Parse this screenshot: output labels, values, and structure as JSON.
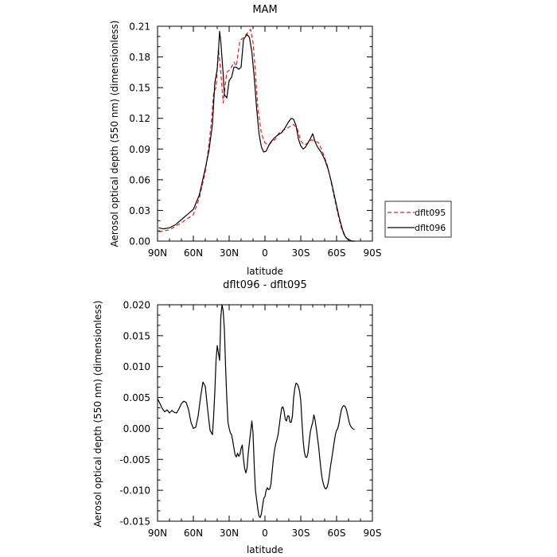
{
  "chart_data": [
    {
      "type": "line",
      "title": "MAM",
      "xlabel": "latitude",
      "ylabel": "Aerosol optical depth (550 nm) (dimensionless)",
      "xlim": [
        90,
        -90
      ],
      "ylim": [
        0,
        0.21
      ],
      "x_ticks": [
        90,
        60,
        30,
        0,
        -30,
        -60,
        -90
      ],
      "x_tick_labels": [
        "90N",
        "60N",
        "30N",
        "0",
        "30S",
        "60S",
        "90S"
      ],
      "y_ticks": [
        0,
        0.03,
        0.06,
        0.09,
        0.12,
        0.15,
        0.18,
        0.21
      ],
      "y_tick_labels": [
        "0.00",
        "0.03",
        "0.06",
        "0.09",
        "0.12",
        "0.15",
        "0.18",
        "0.21"
      ],
      "legend_position": "right",
      "series": [
        {
          "name": "dflt095",
          "color": "#e8191c",
          "dash": "dashed",
          "x": [
            89,
            80,
            70,
            60,
            55,
            50,
            48,
            45,
            43,
            41,
            39,
            37,
            35,
            32,
            29,
            26,
            24,
            21,
            18,
            15,
            12,
            10,
            8,
            6,
            3,
            0,
            -3,
            -6,
            -9,
            -12,
            -15,
            -18,
            -21,
            -24,
            -27,
            -30,
            -33,
            -36,
            -39,
            -42,
            -45,
            -48,
            -52,
            -55,
            -58,
            -61,
            -64,
            -67,
            -70,
            -72,
            -75
          ],
          "values": [
            0.009,
            0.011,
            0.018,
            0.026,
            0.042,
            0.068,
            0.085,
            0.115,
            0.145,
            0.15,
            0.188,
            0.165,
            0.135,
            0.165,
            0.168,
            0.175,
            0.171,
            0.196,
            0.199,
            0.203,
            0.207,
            0.194,
            0.165,
            0.13,
            0.105,
            0.096,
            0.094,
            0.097,
            0.1,
            0.106,
            0.108,
            0.11,
            0.112,
            0.114,
            0.11,
            0.098,
            0.094,
            0.096,
            0.099,
            0.098,
            0.096,
            0.088,
            0.075,
            0.06,
            0.043,
            0.027,
            0.013,
            0.004,
            0.001,
            0.0,
            0.0
          ]
        },
        {
          "name": "dflt096",
          "color": "#000000",
          "dash": "solid",
          "x": [
            89,
            85,
            80,
            75,
            70,
            65,
            60,
            55,
            50,
            47,
            44,
            42,
            40,
            39,
            38,
            37,
            35,
            34,
            32,
            30,
            28,
            26,
            24,
            22,
            20,
            18,
            15,
            13,
            11,
            9,
            7,
            5,
            3,
            1,
            -1,
            -3,
            -5,
            -8,
            -11,
            -14,
            -17,
            -20,
            -22,
            -24,
            -26,
            -28,
            -30,
            -32,
            -34,
            -36,
            -38,
            -40,
            -42,
            -44,
            -47,
            -50,
            -53,
            -56,
            -59,
            -62,
            -65,
            -67,
            -69,
            -71,
            -73,
            -75
          ],
          "values": [
            0.013,
            0.012,
            0.013,
            0.016,
            0.021,
            0.026,
            0.031,
            0.045,
            0.071,
            0.088,
            0.114,
            0.155,
            0.168,
            0.185,
            0.205,
            0.195,
            0.163,
            0.143,
            0.14,
            0.157,
            0.16,
            0.17,
            0.17,
            0.168,
            0.17,
            0.197,
            0.202,
            0.199,
            0.185,
            0.16,
            0.13,
            0.105,
            0.092,
            0.087,
            0.088,
            0.093,
            0.097,
            0.101,
            0.104,
            0.106,
            0.111,
            0.117,
            0.12,
            0.119,
            0.113,
            0.1,
            0.093,
            0.09,
            0.092,
            0.096,
            0.1,
            0.105,
            0.097,
            0.092,
            0.087,
            0.08,
            0.07,
            0.056,
            0.04,
            0.024,
            0.011,
            0.005,
            0.002,
            0.001,
            0.0,
            0.0
          ]
        }
      ]
    },
    {
      "type": "line",
      "title": "dflt096 - dflt095",
      "xlabel": "latitude",
      "ylabel": "Aerosol optical depth (550 nm) (dimensionless)",
      "xlim": [
        90,
        -90
      ],
      "ylim": [
        -0.015,
        0.02
      ],
      "x_ticks": [
        90,
        60,
        30,
        0,
        -30,
        -60,
        -90
      ],
      "x_tick_labels": [
        "90N",
        "60N",
        "30N",
        "0",
        "30S",
        "60S",
        "90S"
      ],
      "y_ticks": [
        -0.015,
        -0.01,
        -0.005,
        0,
        0.005,
        0.01,
        0.015,
        0.02
      ],
      "y_tick_labels": [
        "-0.015",
        "-0.010",
        "-0.005",
        "0.000",
        "0.005",
        "0.010",
        "0.015",
        "0.020"
      ],
      "series": [
        {
          "color": "#000000",
          "dash": "solid",
          "x": [
            90,
            88,
            86,
            84,
            82,
            80,
            78,
            76,
            74,
            72,
            70,
            68,
            66,
            64,
            62,
            60,
            58,
            56,
            54,
            52,
            50,
            48,
            46,
            44,
            43,
            42,
            41,
            40,
            39,
            38,
            37,
            36,
            35,
            34,
            33,
            32,
            31,
            30,
            29,
            28,
            27,
            26,
            25,
            24,
            23,
            22,
            21,
            20,
            19,
            18,
            17,
            16,
            15,
            14,
            13,
            12,
            11,
            10,
            9,
            8,
            7,
            6,
            5,
            4,
            3,
            2,
            1,
            0,
            -1,
            -2,
            -3,
            -4,
            -5,
            -6,
            -7,
            -8,
            -9,
            -10,
            -11,
            -12,
            -13,
            -14,
            -15,
            -16,
            -17,
            -18,
            -19,
            -20,
            -21,
            -22,
            -23,
            -24,
            -25,
            -26,
            -27,
            -28,
            -29,
            -30,
            -31,
            -32,
            -33,
            -34,
            -35,
            -36,
            -37,
            -38,
            -39,
            -40,
            -41,
            -42,
            -43,
            -44,
            -45,
            -46,
            -47,
            -48,
            -49,
            -50,
            -51,
            -52,
            -53,
            -54,
            -55,
            -56,
            -57,
            -58,
            -59,
            -60,
            -61,
            -62,
            -63,
            -64,
            -65,
            -66,
            -67,
            -68,
            -69,
            -70,
            -71,
            -72,
            -73,
            -74,
            -75
          ],
          "values": [
            0.0048,
            0.004,
            0.0032,
            0.0027,
            0.003,
            0.0025,
            0.0029,
            0.0026,
            0.0025,
            0.0032,
            0.004,
            0.0044,
            0.0042,
            0.003,
            0.001,
            0.0,
            0.0002,
            0.002,
            0.005,
            0.0075,
            0.0068,
            0.003,
            -0.0003,
            -0.001,
            0.002,
            0.006,
            0.011,
            0.0134,
            0.0122,
            0.011,
            0.018,
            0.02,
            0.019,
            0.016,
            0.01,
            0.005,
            0.001,
            0.0,
            -0.0007,
            -0.001,
            -0.002,
            -0.0032,
            -0.0043,
            -0.0046,
            -0.004,
            -0.0045,
            -0.0042,
            -0.0032,
            -0.0027,
            -0.005,
            -0.0065,
            -0.0072,
            -0.0064,
            -0.004,
            -0.0022,
            -0.0005,
            0.0012,
            -0.0008,
            -0.006,
            -0.01,
            -0.0115,
            -0.013,
            -0.0142,
            -0.0144,
            -0.0138,
            -0.0125,
            -0.0113,
            -0.011,
            -0.01,
            -0.0096,
            -0.0099,
            -0.0098,
            -0.009,
            -0.007,
            -0.005,
            -0.0035,
            -0.0025,
            -0.0018,
            -0.001,
            0.0005,
            0.002,
            0.0033,
            0.0035,
            0.0028,
            0.0015,
            0.0012,
            0.002,
            0.002,
            0.001,
            0.001,
            0.002,
            0.005,
            0.0065,
            0.0073,
            0.0072,
            0.0068,
            0.006,
            0.0045,
            0.001,
            -0.002,
            -0.0038,
            -0.0046,
            -0.0047,
            -0.004,
            -0.0022,
            -0.0005,
            0.0003,
            0.001,
            0.0022,
            0.0013,
            0.0,
            -0.0015,
            -0.003,
            -0.005,
            -0.0068,
            -0.0082,
            -0.009,
            -0.0096,
            -0.0098,
            -0.0095,
            -0.0088,
            -0.0075,
            -0.006,
            -0.0048,
            -0.0035,
            -0.0022,
            -0.001,
            -0.0003,
            0.0,
            0.0008,
            0.002,
            0.003,
            0.0035,
            0.0037,
            0.0036,
            0.0032,
            0.0024,
            0.0015,
            0.0007,
            0.0003,
            0.0001,
            -0.0001,
            -0.0002
          ]
        }
      ]
    }
  ]
}
